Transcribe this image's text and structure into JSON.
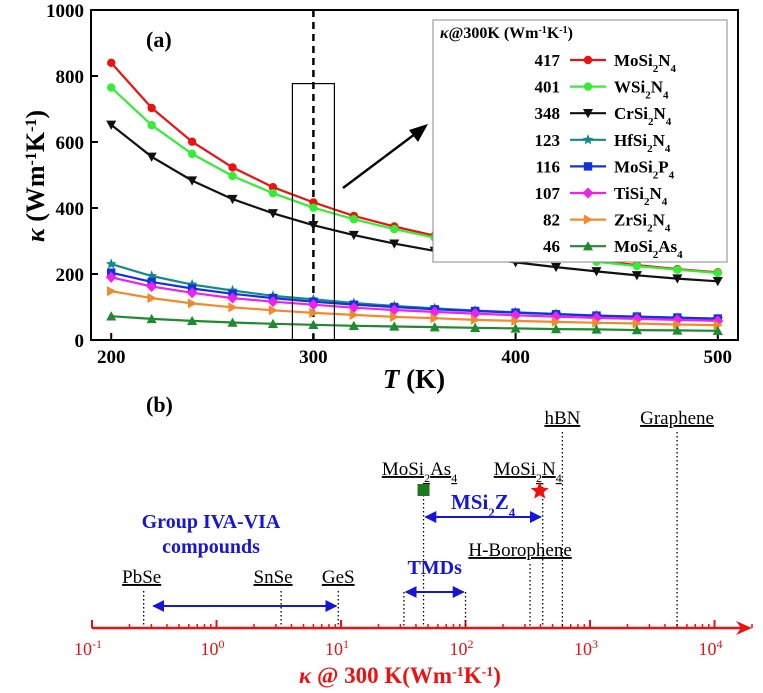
{
  "chart_data": [
    {
      "type": "line",
      "panel_label": "(a)",
      "xlabel": "T",
      "xlabel_unit": "(K)",
      "ylabel": "κ",
      "ylabel_unit_parts": [
        [
          "(Wm",
          ""
        ],
        [
          "-1",
          "sup"
        ],
        [
          "K",
          ""
        ],
        [
          "-1",
          "sup"
        ],
        [
          ")",
          ""
        ]
      ],
      "xlim": [
        190,
        510
      ],
      "ylim": [
        0,
        1000
      ],
      "xticks": [
        200,
        300,
        400,
        500
      ],
      "yticks": [
        0,
        200,
        400,
        600,
        800,
        1000
      ],
      "x": [
        200,
        220,
        240,
        260,
        280,
        300,
        320,
        340,
        360,
        380,
        400,
        420,
        440,
        460,
        480,
        500
      ],
      "reference_line_x": 300,
      "legend_title_parts": [
        [
          "κ",
          "b"
        ],
        [
          "@300K (Wm",
          ""
        ],
        [
          "-1",
          "sup"
        ],
        [
          "K",
          ""
        ],
        [
          "-1",
          "sup"
        ],
        [
          ")",
          ""
        ]
      ],
      "series": [
        {
          "name": "MoSi2N4",
          "label_parts": [
            [
              "MoSi",
              ""
            ],
            [
              "2",
              "sub"
            ],
            [
              "N",
              ""
            ],
            [
              "4",
              "sub"
            ]
          ],
          "value_300K": "417",
          "color": "#ee1111",
          "marker": "circle",
          "values": [
            840,
            703,
            601,
            523,
            463,
            417,
            376,
            344,
            316,
            293,
            273,
            255,
            240,
            227,
            215,
            205
          ]
        },
        {
          "name": "WSi2N4",
          "label_parts": [
            [
              "WSi",
              ""
            ],
            [
              "2",
              "sub"
            ],
            [
              "N",
              ""
            ],
            [
              "4",
              "sub"
            ]
          ],
          "value_300K": "401",
          "color": "#33ee33",
          "marker": "circle",
          "values": [
            765,
            651,
            564,
            497,
            445,
            401,
            366,
            336,
            310,
            288,
            268,
            252,
            237,
            224,
            213,
            203
          ]
        },
        {
          "name": "CrSi2N4",
          "label_parts": [
            [
              "CrSi",
              ""
            ],
            [
              "2",
              "sub"
            ],
            [
              "N",
              ""
            ],
            [
              "4",
              "sub"
            ]
          ],
          "value_300K": "348",
          "color": "#111111",
          "marker": "triangle-down",
          "values": [
            652,
            555,
            483,
            427,
            384,
            348,
            318,
            292,
            270,
            252,
            235,
            221,
            208,
            196,
            186,
            178
          ]
        },
        {
          "name": "HfSi2N4",
          "label_parts": [
            [
              "HfSi",
              ""
            ],
            [
              "2",
              "sub"
            ],
            [
              "N",
              ""
            ],
            [
              "4",
              "sub"
            ]
          ],
          "value_300K": "123",
          "color": "#138a8a",
          "marker": "star",
          "values": [
            230,
            194,
            168,
            150,
            134,
            123,
            112,
            103,
            96,
            89,
            84,
            79,
            74,
            70,
            67,
            64
          ]
        },
        {
          "name": "MoSi2P4",
          "label_parts": [
            [
              "MoSi",
              ""
            ],
            [
              "2",
              "sub"
            ],
            [
              "P",
              ""
            ],
            [
              "4",
              "sub"
            ]
          ],
          "value_300K": "116",
          "color": "#1133dd",
          "marker": "square",
          "values": [
            204,
            176,
            156,
            140,
            127,
            116,
            107,
            100,
            93,
            88,
            83,
            78,
            74,
            71,
            68,
            65
          ]
        },
        {
          "name": "TiSi2N4",
          "label_parts": [
            [
              "TiSi",
              ""
            ],
            [
              "2",
              "sub"
            ],
            [
              "N",
              ""
            ],
            [
              "4",
              "sub"
            ]
          ],
          "value_300K": "107",
          "color": "#ee22ee",
          "marker": "diamond",
          "values": [
            190,
            162,
            143,
            127,
            116,
            107,
            98,
            91,
            85,
            80,
            75,
            71,
            67,
            64,
            61,
            58
          ]
        },
        {
          "name": "ZrSi2N4",
          "label_parts": [
            [
              "ZrSi",
              ""
            ],
            [
              "2",
              "sub"
            ],
            [
              "N",
              ""
            ],
            [
              "4",
              "sub"
            ]
          ],
          "value_300K": "82",
          "color": "#f08a2a",
          "marker": "triangle-right",
          "values": [
            148,
            127,
            111,
            99,
            90,
            82,
            76,
            70,
            66,
            61,
            58,
            55,
            52,
            50,
            47,
            45
          ]
        },
        {
          "name": "MoSi2As4",
          "label_parts": [
            [
              "MoSi",
              ""
            ],
            [
              "2",
              "sub"
            ],
            [
              "As",
              ""
            ],
            [
              "4",
              "sub"
            ]
          ],
          "value_300K": "46",
          "color": "#1f8a2e",
          "marker": "triangle-up",
          "values": [
            72,
            64,
            58,
            53,
            49,
            46,
            43,
            41,
            39,
            37,
            35,
            33,
            32,
            30,
            29,
            28
          ]
        }
      ]
    },
    {
      "type": "scale",
      "panel_label": "(b)",
      "axis_scale": "log",
      "xlim": [
        0.1,
        20000
      ],
      "xlabel_parts": [
        [
          "κ",
          "b"
        ],
        [
          " @ 300 K(Wm",
          ""
        ],
        [
          "-1",
          "sup"
        ],
        [
          "K",
          ""
        ],
        [
          "-1",
          "sup"
        ],
        [
          ")",
          ""
        ]
      ],
      "tick_labels": [
        {
          "base": "10",
          "exp": "-1",
          "value": 0.1
        },
        {
          "base": "10",
          "exp": "0",
          "value": 1
        },
        {
          "base": "10",
          "exp": "1",
          "value": 10
        },
        {
          "base": "10",
          "exp": "2",
          "value": 100
        },
        {
          "base": "10",
          "exp": "3",
          "value": 1000
        },
        {
          "base": "10",
          "exp": "4",
          "value": 10000
        }
      ],
      "colors": {
        "axis": "#ee1111",
        "group": "#1515dd",
        "green_marker": "#1c7a1c",
        "star_marker": "#ee1111"
      },
      "materials": [
        {
          "name": "PbSe",
          "label_parts": [
            [
              "PbSe",
              ""
            ]
          ],
          "value": 0.26
        },
        {
          "name": "SnSe",
          "label_parts": [
            [
              "SnSe",
              ""
            ]
          ],
          "value": 3.3
        },
        {
          "name": "GeS",
          "label_parts": [
            [
              "GeS",
              ""
            ]
          ],
          "value": 9.5
        },
        {
          "name": "MoSi2As4",
          "label_parts": [
            [
              "MoSi",
              ""
            ],
            [
              "2",
              "sub"
            ],
            [
              "As",
              ""
            ],
            [
              "4",
              "sub"
            ]
          ],
          "value": 46,
          "marker": "square"
        },
        {
          "name": "MoSi2N4",
          "label_parts": [
            [
              "MoSi",
              ""
            ],
            [
              "2",
              "sub"
            ],
            [
              "N",
              ""
            ],
            [
              "4",
              "sub"
            ]
          ],
          "value": 417,
          "marker": "star"
        },
        {
          "name": "H-Borophene",
          "label_parts": [
            [
              "H-Borophene",
              ""
            ]
          ],
          "value": 330
        },
        {
          "name": "hBN",
          "label_parts": [
            [
              "hBN",
              ""
            ]
          ],
          "value": 600
        },
        {
          "name": "Graphene",
          "label_parts": [
            [
              "Graphene",
              ""
            ]
          ],
          "value": 5000
        }
      ],
      "groups": [
        {
          "name": "Group IVA-VIA compounds",
          "lines": [
            "Group IVA-VIA",
            "compounds"
          ],
          "range": [
            0.3,
            9.5
          ]
        },
        {
          "name": "TMDs",
          "label_parts": [
            [
              "TMDs",
              ""
            ]
          ],
          "range": [
            32,
            100
          ]
        },
        {
          "name": "MSi2Z4",
          "label_parts": [
            [
              "MSi",
              ""
            ],
            [
              "2",
              "sub"
            ],
            [
              "Z",
              ""
            ],
            [
              "4",
              "sub"
            ]
          ],
          "range": [
            46,
            417
          ]
        }
      ]
    }
  ]
}
